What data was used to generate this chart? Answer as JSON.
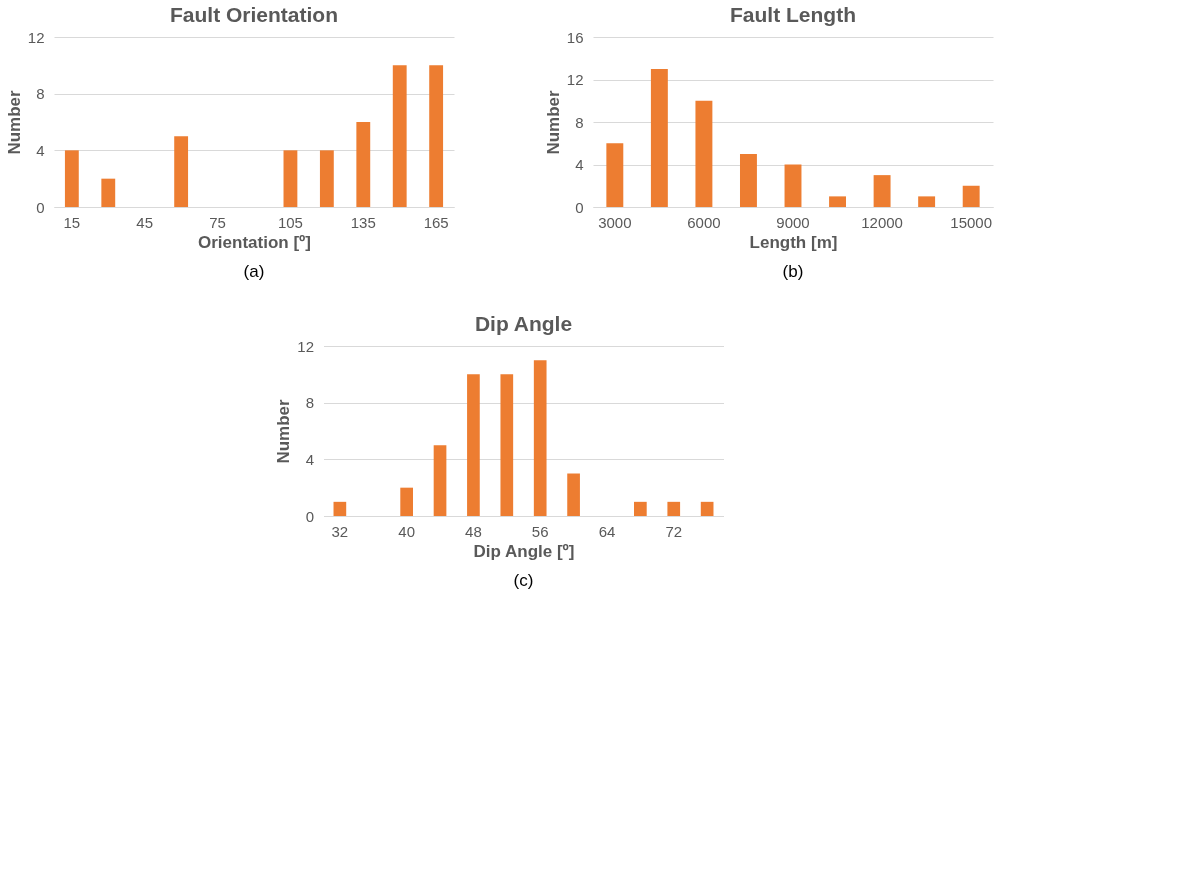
{
  "chart_data": [
    {
      "type": "bar",
      "title": "Fault Orientation",
      "xlabel": "Orientation [º]",
      "ylabel": "Number",
      "categories": [
        "15",
        null,
        "45",
        null,
        "75",
        null,
        "105",
        null,
        "135",
        null,
        "165"
      ],
      "values": [
        4,
        2,
        0,
        5,
        0,
        0,
        4,
        4,
        6,
        10,
        10
      ],
      "color": "#ed7d31",
      "ylim": [
        0,
        12
      ],
      "yticks": [
        0,
        4,
        8,
        12
      ],
      "grid": "y",
      "annotations": [
        "(a)"
      ]
    },
    {
      "type": "bar",
      "title": "Fault Length",
      "xlabel": "Length [m]",
      "ylabel": "Number",
      "categories": [
        "3000",
        null,
        "6000",
        null,
        "9000",
        null,
        "12000",
        null,
        "15000"
      ],
      "values": [
        6,
        13,
        10,
        5,
        4,
        1,
        3,
        1,
        2
      ],
      "color": "#ed7d31",
      "ylim": [
        0,
        16
      ],
      "yticks": [
        0,
        4,
        8,
        12,
        16
      ],
      "grid": "y",
      "annotations": [
        "(b)"
      ]
    },
    {
      "type": "bar",
      "title": "Dip Angle",
      "xlabel": "Dip Angle [º]",
      "ylabel": "Number",
      "categories": [
        "32",
        null,
        "40",
        null,
        "48",
        null,
        "56",
        null,
        "64",
        null,
        "72",
        null
      ],
      "values": [
        1,
        0,
        2,
        5,
        10,
        10,
        11,
        3,
        0,
        1,
        1,
        1
      ],
      "color": "#ed7d31",
      "ylim": [
        0,
        12
      ],
      "yticks": [
        0,
        4,
        8,
        12
      ],
      "grid": "y",
      "annotations": [
        "(c)"
      ]
    }
  ]
}
